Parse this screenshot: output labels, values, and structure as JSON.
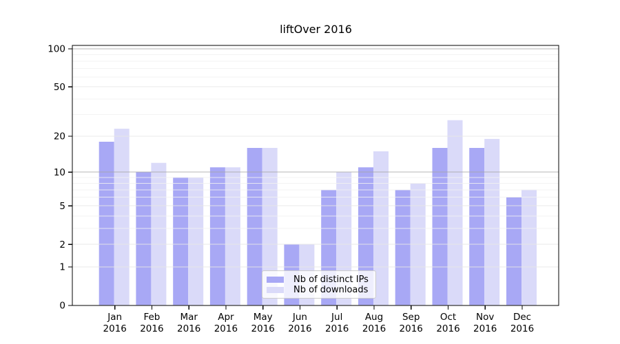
{
  "figure": {
    "title": "liftOver 2016",
    "background": "#ffffff"
  },
  "chart_data": {
    "type": "bar",
    "title": "liftOver 2016",
    "scale": "log1p",
    "grid": "on",
    "legend_position": "lower center",
    "categories": [
      "Jan 2016",
      "Feb 2016",
      "Mar 2016",
      "Apr 2016",
      "May 2016",
      "Jun 2016",
      "Jul 2016",
      "Aug 2016",
      "Sep 2016",
      "Oct 2016",
      "Nov 2016",
      "Dec 2016"
    ],
    "months": [
      "Jan",
      "Feb",
      "Mar",
      "Apr",
      "May",
      "Jun",
      "Jul",
      "Aug",
      "Sep",
      "Oct",
      "Nov",
      "Dec"
    ],
    "year_label": "2016",
    "series": [
      {
        "name": "Nb of distinct IPs",
        "color": "#a8a8f5",
        "values": [
          18,
          10,
          9,
          11,
          16,
          2,
          7,
          11,
          7,
          16,
          16,
          6
        ]
      },
      {
        "name": "Nb of downloads",
        "color": "#dadaf9",
        "values": [
          23,
          12,
          9,
          11,
          16,
          2,
          10,
          15,
          8,
          27,
          19,
          7
        ]
      }
    ],
    "ylim": [
      0,
      100
    ],
    "y_tick_values": [
      0,
      1,
      2,
      5,
      10,
      20,
      50,
      100
    ],
    "y_tick_labels": [
      "0",
      "1",
      "2",
      "5",
      "10",
      "20",
      "50",
      "100"
    ],
    "y_major_gridlines": [
      1,
      2,
      5,
      20,
      50
    ],
    "y_emphasized_gridlines": [
      10,
      100
    ],
    "y_minor_gridlines": [
      3,
      4,
      6,
      7,
      8,
      9,
      30,
      40,
      60,
      70,
      80,
      90
    ],
    "colors": {
      "spine": "#000000",
      "tick_label": "#000000",
      "grid_minor": "rgba(241,241,241,0.85)",
      "grid_major": "rgba(229,229,229,0.9)",
      "grid_emphasized": "rgba(163,163,163,0.8)"
    }
  }
}
